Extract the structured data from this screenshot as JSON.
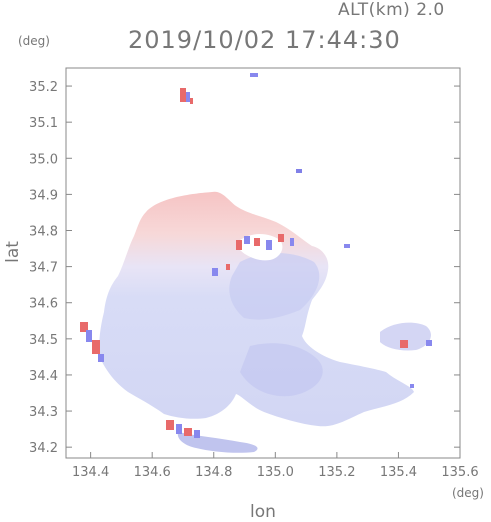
{
  "header": {
    "altitude_label": "ALT(km) 2.0",
    "timestamp": "2019/10/02 17:44:30"
  },
  "axes": {
    "x_label": "lon",
    "y_label": "lat",
    "x_unit": "(deg)",
    "y_unit": "(deg)",
    "x_ticks": [
      "134.4",
      "134.6",
      "134.8",
      "135.0",
      "135.2",
      "135.4",
      "135.6"
    ],
    "y_ticks": [
      "35.2",
      "35.1",
      "35.0",
      "34.9",
      "34.8",
      "34.7",
      "34.6",
      "34.5",
      "34.4",
      "34.3",
      "34.2"
    ]
  },
  "map": {
    "x_range": [
      134.32,
      135.6
    ],
    "y_range": [
      34.17,
      35.25
    ],
    "field_colors": {
      "approaching": "#8080f0",
      "receding": "#f07070",
      "neutral": "#e0e4f8"
    }
  }
}
